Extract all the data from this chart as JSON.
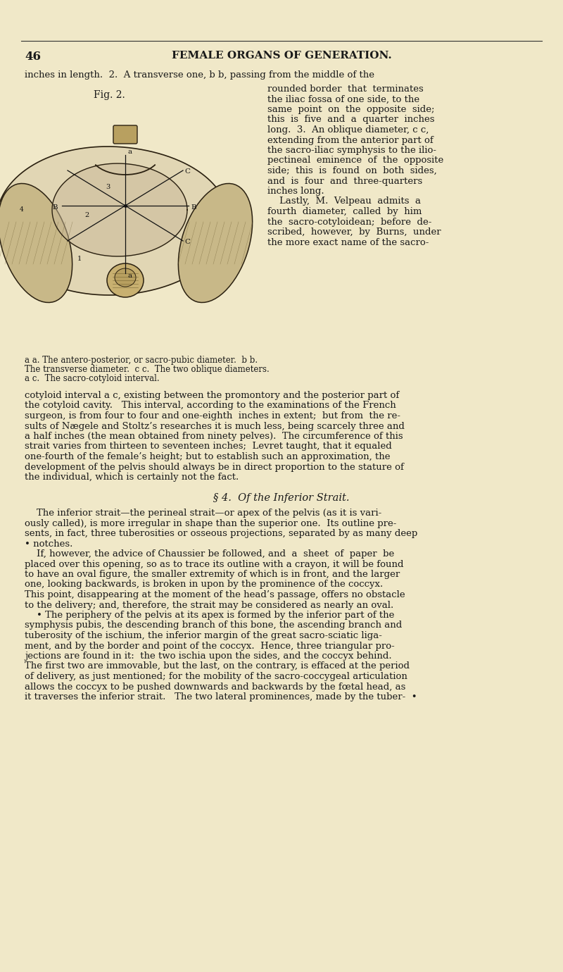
{
  "bg_color": "#f0e8c8",
  "page_number": "46",
  "header": "FEMALE ORGANS OF GENERATION.",
  "header_fontsize": 11,
  "page_num_fontsize": 12,
  "fig_label": "Fig. 2.",
  "fig_label_fontsize": 10,
  "caption_lines": [
    "a a. The antero-posterior, or sacro-pubic diameter.  b b.",
    "The transverse diameter.  c c.  The two oblique diameters.",
    "a c.  The sacro-cotyloid interval."
  ],
  "caption_fontsize": 8.5,
  "body_fontsize": 9.5,
  "line1": "inches in length.  2.  A transverse one, b b, passing from the middle of the",
  "right_col_lines": [
    "rounded border  that  terminates",
    "the iliac fossa of one side, to the",
    "same  point  on  the  opposite  side;",
    "this  is  five  and  a  quarter  inches",
    "long.  3.  An oblique diameter, c c,",
    "extending from the anterior part of",
    "the sacro-iliac symphysis to the ilio-",
    "pectineal  eminence  of  the  opposite",
    "side;  this  is  found  on  both  sides,",
    "and  is  four  and  three-quarters",
    "inches long.",
    "    Lastly,  M.  Velpeau  admits  a",
    "fourth  diameter,  called  by  him",
    "the  sacro-cotyloidean;  before  de-",
    "scribed,  however,  by  Burns,  under",
    "the more exact name of the sacro-"
  ],
  "bottom_lines": [
    "cotyloid interval a c, existing between the promontory and the posterior part of",
    "the cotyloid cavity.   This interval, according to the examinations of the French",
    "surgeon, is from four to four and one-eighth  inches in extent;  but from  the re-",
    "sults of Nægele and Stoltz’s researches it is much less, being scarcely three and",
    "a half inches (the mean obtained from ninety pelves).  The circumference of this",
    "strait varies from thirteen to seventeen inches;  Levret taught, that it equaled",
    "one-fourth of the female’s height; but to establish such an approximation, the",
    "development of the pelvis should always be in direct proportion to the stature of",
    "the individual, which is certainly not the fact."
  ],
  "section_header": "§ 4.  Of the Inferior Strait.",
  "section_fontsize": 10.5,
  "section_lines": [
    "    The inferior strait—the perineal strait—or apex of the pelvis (as it is vari-",
    "ously called), is more irregular in shape than the superior one.  Its outline pre-",
    "sents, in fact, three tuberosities or osseous projections, separated by as many deep",
    "• notches.",
    "    If, however, the advice of Chaussier be followed, and  a  sheet  of  paper  be",
    "placed over this opening, so as to trace its outline with a crayon, it will be found",
    "to have an oval figure, the smaller extremity of which is in front, and the larger",
    "one, looking backwards, is broken in upon by the prominence of the coccyx.",
    "This point, disappearing at the moment of the head’s passage, offers no obstacle",
    "to the delivery; and, therefore, the strait may be considered as nearly an oval.",
    "    • The periphery of the pelvis at its apex is formed by the inferior part of the",
    "symphysis pubis, the descending branch of this bone, the ascending branch and",
    "tuberosity of the ischium, the inferior margin of the great sacro-sciatic liga-",
    "ment, and by the border and point of the coccyx.  Hence, three triangular pro-",
    "jections are found in it:  the two ischia upon the sides, and the coccyx behind.",
    "The first two are immovable, but the last, on the contrary, is effaced at the period",
    "of delivery, as just mentioned; for the mobility of the sacro-coccygeal articulation",
    "allows the coccyx to be pushed downwards and backwards by the fœtal head, as",
    "it traverses the inferior strait.   The two lateral prominences, made by the tuber-  •"
  ]
}
